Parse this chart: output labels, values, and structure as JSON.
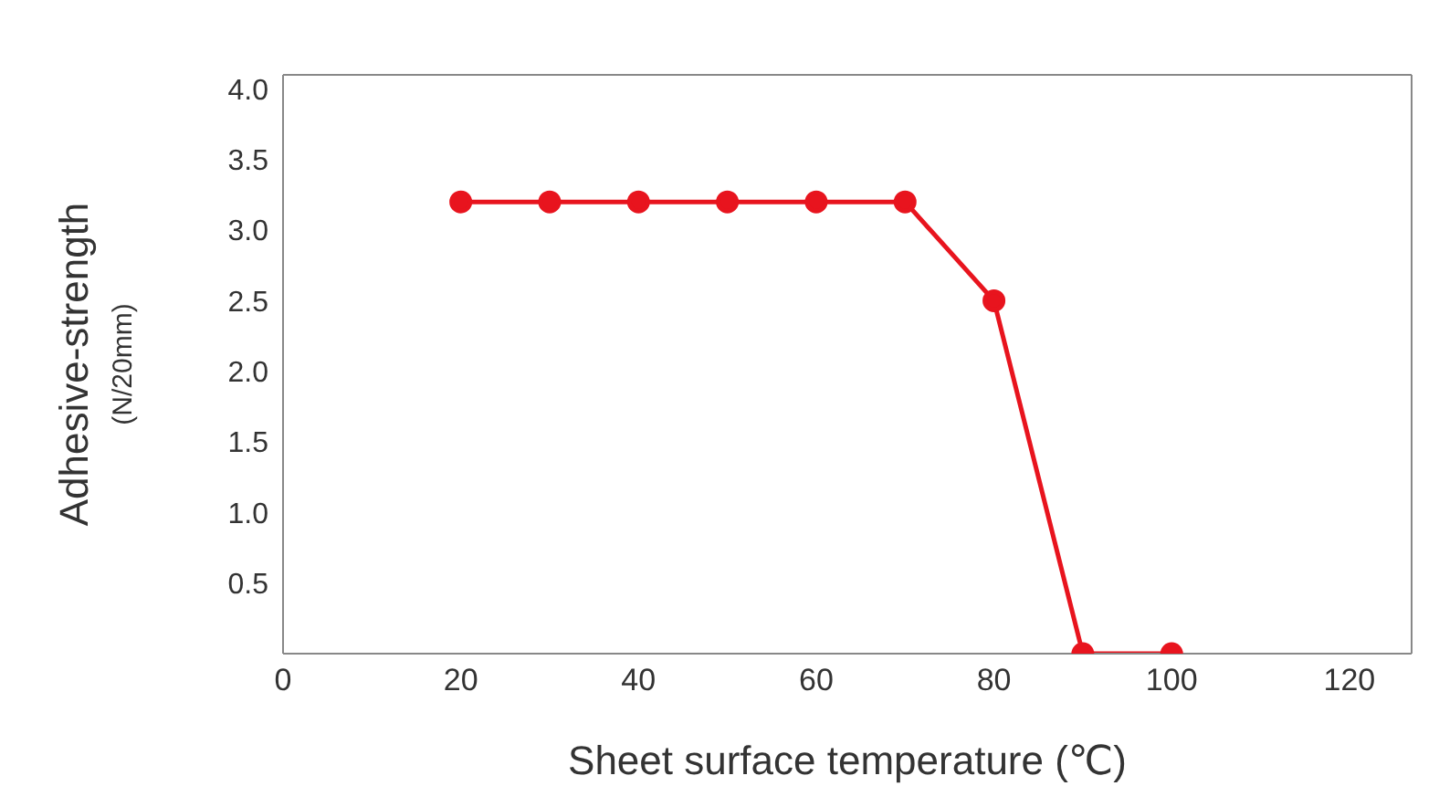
{
  "chart_data": {
    "type": "line",
    "xlabel": "Sheet surface temperature (℃)",
    "ylabel": "Adhesive-strength\n(N/20mm)",
    "x": [
      20,
      30,
      40,
      50,
      60,
      70,
      80,
      90,
      100
    ],
    "series": [
      {
        "color": "#e8141e",
        "values": [
          3.2,
          3.2,
          3.2,
          3.2,
          3.2,
          3.2,
          2.5,
          0,
          0
        ]
      }
    ],
    "xlim": [
      0,
      127
    ],
    "xticks": [
      0,
      20,
      40,
      60,
      80,
      100,
      120
    ],
    "ylim": [
      0,
      4.1
    ],
    "yticks": [
      0.5,
      {
        "value": 1,
        "label": "1.0"
      },
      1.5,
      {
        "value": 2,
        "label": "2.0"
      },
      2.5,
      {
        "value": 3,
        "label": "3.0"
      },
      3.5,
      {
        "value": 4,
        "label": "4.0"
      }
    ],
    "grid": false,
    "legend": false,
    "marker": "circle",
    "line_style": "solid"
  }
}
